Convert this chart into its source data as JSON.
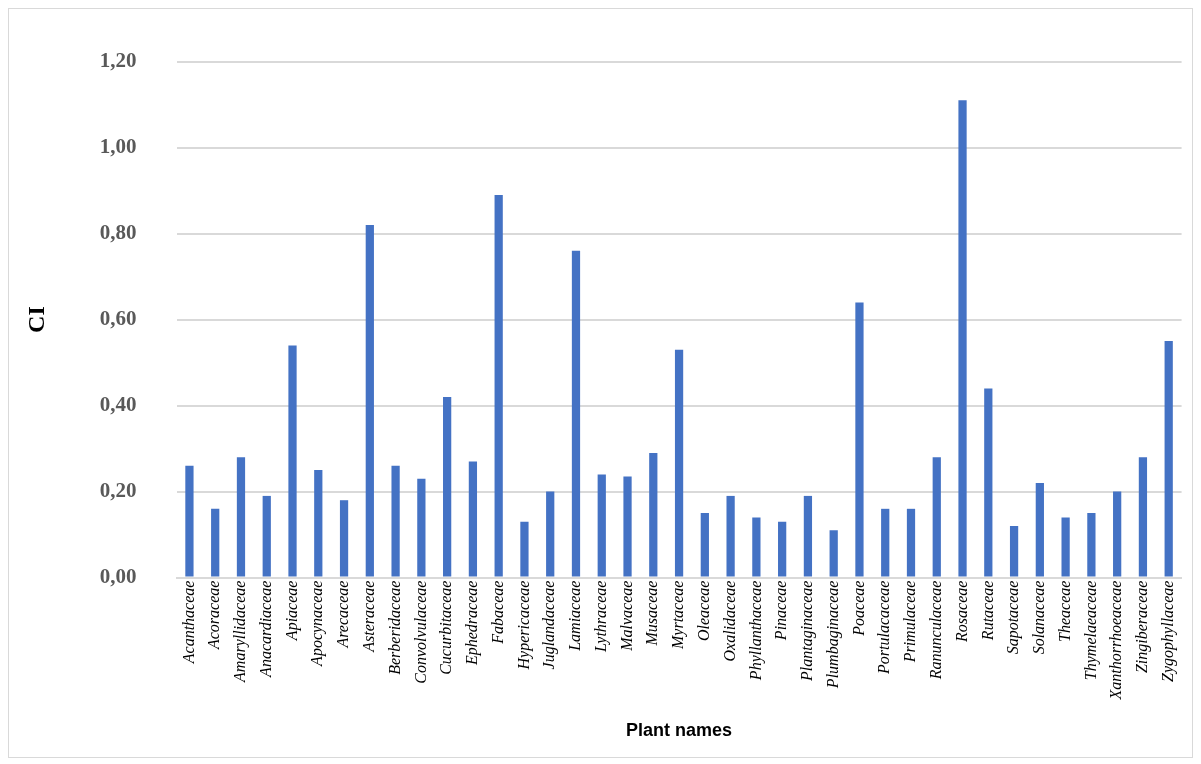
{
  "chart_data": {
    "type": "bar",
    "xlabel": "Plant names",
    "ylabel": "CI",
    "categories": [
      "Acanthaceae",
      "Acoraceae",
      "Amaryllidaceae",
      "Anacardiaceae",
      "Apiaceae",
      "Apocynaceae",
      "Arecaceae",
      "Asteraceae",
      "Berberidaceae",
      "Convolvulaceae",
      "Cucurbitaceae",
      "Ephedraceae",
      "Fabaceae",
      "Hypericaceae",
      "Juglandaceae",
      "Lamiaceae",
      "Lythraceae",
      "Malvaceae",
      "Musaceae",
      "Myrtaceae",
      "Oleaceae",
      "Oxalidaceae",
      "Phyllanthaceae",
      "Pinaceae",
      "Plantaginaceae",
      "Plumbaginaceae",
      "Poaceae",
      "Portulacaceae",
      "Primulaceae",
      "Ranunculaceae",
      "Rosaceae",
      "Rutaceae",
      "Sapotaceae",
      "Solanaceae",
      "Theaceae",
      "Thymelaeaceae",
      "Xanthorrhoeaceae",
      "Zingiberaceae",
      "Zygophyllaceae"
    ],
    "values": [
      0.26,
      0.16,
      0.28,
      0.19,
      0.54,
      0.25,
      0.18,
      0.82,
      0.26,
      0.23,
      0.42,
      0.27,
      0.89,
      0.13,
      0.2,
      0.76,
      0.24,
      0.235,
      0.29,
      0.53,
      0.15,
      0.19,
      0.14,
      0.13,
      0.19,
      0.11,
      0.64,
      0.16,
      0.16,
      0.28,
      1.11,
      0.44,
      0.12,
      0.22,
      0.14,
      0.15,
      0.2,
      0.28,
      0.55
    ],
    "color": "#4472c4",
    "ylim": [
      0,
      1.2
    ],
    "yticks": [
      {
        "value": 0,
        "label": "0,00"
      },
      {
        "value": 0.2,
        "label": "0,20"
      },
      {
        "value": 0.4,
        "label": "0,40"
      },
      {
        "value": 0.6,
        "label": "0,60"
      },
      {
        "value": 0.8,
        "label": "0,80"
      },
      {
        "value": 1.0,
        "label": "1,00"
      },
      {
        "value": 1.2,
        "label": "1,20"
      }
    ],
    "grid": "y"
  }
}
